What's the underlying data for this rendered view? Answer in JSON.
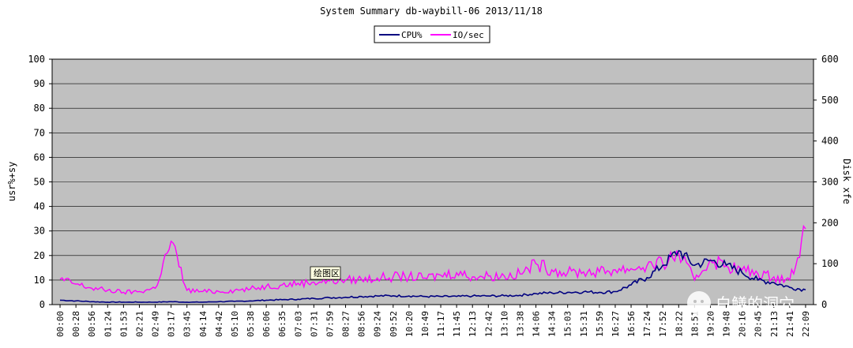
{
  "chart_data": {
    "type": "line",
    "title": "System Summary db-waybill-06  2013/11/18",
    "ylabel": "usr%+sy",
    "y2label": "Disk xfe",
    "ylim": [
      0,
      100
    ],
    "y2lim": [
      0,
      600
    ],
    "yticks": [
      0,
      10,
      20,
      30,
      40,
      50,
      60,
      70,
      80,
      90,
      100
    ],
    "y2ticks": [
      0,
      100,
      200,
      300,
      400,
      500,
      600
    ],
    "grid": true,
    "legend": "top-center",
    "plot_background": "#c0c0c0",
    "x": [
      "00:00",
      "00:28",
      "00:56",
      "01:24",
      "01:53",
      "02:21",
      "02:49",
      "03:17",
      "03:45",
      "04:14",
      "04:42",
      "05:10",
      "05:38",
      "06:06",
      "06:35",
      "07:03",
      "07:31",
      "07:59",
      "08:27",
      "08:56",
      "09:24",
      "09:52",
      "10:20",
      "10:49",
      "11:17",
      "11:45",
      "12:13",
      "12:42",
      "13:10",
      "13:38",
      "14:06",
      "14:34",
      "15:03",
      "15:31",
      "15:59",
      "16:27",
      "16:56",
      "17:24",
      "17:52",
      "18:22",
      "18:51",
      "19:20",
      "19:48",
      "20:16",
      "20:45",
      "21:13",
      "21:41",
      "22:09"
    ],
    "series": [
      {
        "name": "CPU%",
        "axis": "left",
        "color": "#000080",
        "values": [
          1.8,
          1.5,
          1.2,
          1.0,
          1.0,
          1.0,
          1.0,
          1.2,
          1.0,
          1.0,
          1.2,
          1.3,
          1.5,
          1.8,
          2.0,
          2.2,
          2.5,
          2.8,
          3.0,
          3.3,
          3.5,
          3.6,
          3.5,
          3.3,
          3.3,
          3.3,
          3.5,
          3.5,
          3.6,
          3.8,
          4.5,
          4.8,
          5.0,
          5.2,
          5.0,
          5.3,
          8.0,
          11.0,
          16.0,
          22.0,
          16.0,
          18.0,
          16.0,
          13.0,
          10.0,
          9.0,
          7.0,
          6.0
        ]
      },
      {
        "name": "IO/sec",
        "axis": "right",
        "color": "#ff00ff",
        "values": [
          62,
          50,
          40,
          35,
          30,
          32,
          40,
          155,
          35,
          32,
          32,
          35,
          38,
          45,
          48,
          52,
          55,
          58,
          60,
          62,
          65,
          68,
          68,
          65,
          72,
          78,
          68,
          70,
          70,
          75,
          100,
          85,
          78,
          80,
          80,
          85,
          88,
          95,
          100,
          125,
          60,
          110,
          95,
          85,
          75,
          68,
          60,
          185
        ]
      }
    ]
  },
  "tooltip": {
    "text": "绘图区"
  },
  "watermark": {
    "text": "白鳝的洞穴"
  }
}
